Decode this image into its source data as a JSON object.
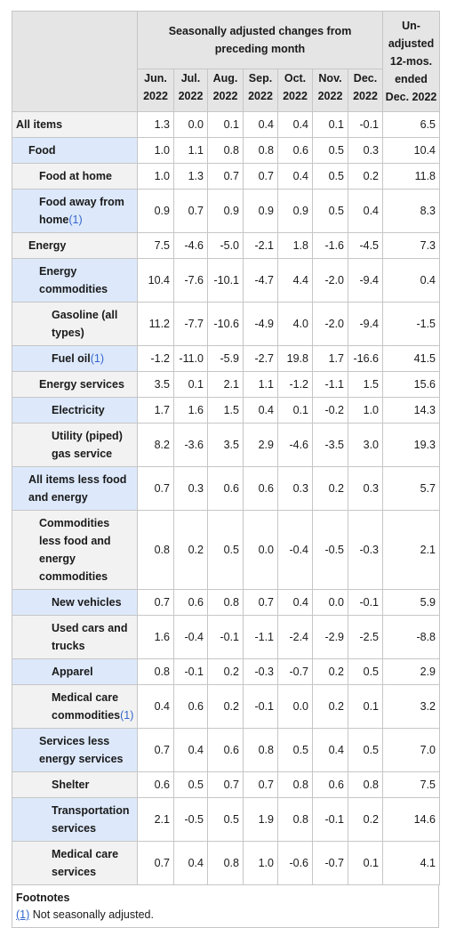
{
  "header": {
    "seasonal": "Seasonally adjusted changes from preceding month",
    "unadjusted": "Un-adjusted 12-mos. ended Dec. 2022",
    "months": [
      {
        "m": "Jun.",
        "y": "2022"
      },
      {
        "m": "Jul.",
        "y": "2022"
      },
      {
        "m": "Aug.",
        "y": "2022"
      },
      {
        "m": "Sep.",
        "y": "2022"
      },
      {
        "m": "Oct.",
        "y": "2022"
      },
      {
        "m": "Nov.",
        "y": "2022"
      },
      {
        "m": "Dec.",
        "y": "2022"
      }
    ]
  },
  "rows": [
    {
      "label": "All items",
      "fn": "",
      "level": 0,
      "vals": [
        "1.3",
        "0.0",
        "0.1",
        "0.4",
        "0.4",
        "0.1",
        "-0.1",
        "6.5"
      ]
    },
    {
      "label": "Food",
      "fn": "",
      "level": 1,
      "vals": [
        "1.0",
        "1.1",
        "0.8",
        "0.8",
        "0.6",
        "0.5",
        "0.3",
        "10.4"
      ]
    },
    {
      "label": "Food at home",
      "fn": "",
      "level": 2,
      "vals": [
        "1.0",
        "1.3",
        "0.7",
        "0.7",
        "0.4",
        "0.5",
        "0.2",
        "11.8"
      ]
    },
    {
      "label": "Food away from home",
      "fn": "(1)",
      "level": 2,
      "vals": [
        "0.9",
        "0.7",
        "0.9",
        "0.9",
        "0.9",
        "0.5",
        "0.4",
        "8.3"
      ]
    },
    {
      "label": "Energy",
      "fn": "",
      "level": 1,
      "vals": [
        "7.5",
        "-4.6",
        "-5.0",
        "-2.1",
        "1.8",
        "-1.6",
        "-4.5",
        "7.3"
      ]
    },
    {
      "label": "Energy commodities",
      "fn": "",
      "level": 2,
      "vals": [
        "10.4",
        "-7.6",
        "-10.1",
        "-4.7",
        "4.4",
        "-2.0",
        "-9.4",
        "0.4"
      ]
    },
    {
      "label": "Gasoline (all types)",
      "fn": "",
      "level": 3,
      "vals": [
        "11.2",
        "-7.7",
        "-10.6",
        "-4.9",
        "4.0",
        "-2.0",
        "-9.4",
        "-1.5"
      ]
    },
    {
      "label": "Fuel oil",
      "fn": "(1)",
      "level": 3,
      "vals": [
        "-1.2",
        "-11.0",
        "-5.9",
        "-2.7",
        "19.8",
        "1.7",
        "-16.6",
        "41.5"
      ]
    },
    {
      "label": "Energy services",
      "fn": "",
      "level": 2,
      "vals": [
        "3.5",
        "0.1",
        "2.1",
        "1.1",
        "-1.2",
        "-1.1",
        "1.5",
        "15.6"
      ]
    },
    {
      "label": "Electricity",
      "fn": "",
      "level": 3,
      "vals": [
        "1.7",
        "1.6",
        "1.5",
        "0.4",
        "0.1",
        "-0.2",
        "1.0",
        "14.3"
      ]
    },
    {
      "label": "Utility (piped) gas service",
      "fn": "",
      "level": 3,
      "vals": [
        "8.2",
        "-3.6",
        "3.5",
        "2.9",
        "-4.6",
        "-3.5",
        "3.0",
        "19.3"
      ]
    },
    {
      "label": "All items less food and energy",
      "fn": "",
      "level": 1,
      "vals": [
        "0.7",
        "0.3",
        "0.6",
        "0.6",
        "0.3",
        "0.2",
        "0.3",
        "5.7"
      ]
    },
    {
      "label": "Commodities less food and energy commodities",
      "fn": "",
      "level": 2,
      "vals": [
        "0.8",
        "0.2",
        "0.5",
        "0.0",
        "-0.4",
        "-0.5",
        "-0.3",
        "2.1"
      ]
    },
    {
      "label": "New vehicles",
      "fn": "",
      "level": 3,
      "vals": [
        "0.7",
        "0.6",
        "0.8",
        "0.7",
        "0.4",
        "0.0",
        "-0.1",
        "5.9"
      ]
    },
    {
      "label": "Used cars and trucks",
      "fn": "",
      "level": 3,
      "vals": [
        "1.6",
        "-0.4",
        "-0.1",
        "-1.1",
        "-2.4",
        "-2.9",
        "-2.5",
        "-8.8"
      ]
    },
    {
      "label": "Apparel",
      "fn": "",
      "level": 3,
      "vals": [
        "0.8",
        "-0.1",
        "0.2",
        "-0.3",
        "-0.7",
        "0.2",
        "0.5",
        "2.9"
      ]
    },
    {
      "label": "Medical care commodities",
      "fn": "(1)",
      "level": 3,
      "vals": [
        "0.4",
        "0.6",
        "0.2",
        "-0.1",
        "0.0",
        "0.2",
        "0.1",
        "3.2"
      ]
    },
    {
      "label": "Services less energy services",
      "fn": "",
      "level": 2,
      "vals": [
        "0.7",
        "0.4",
        "0.6",
        "0.8",
        "0.5",
        "0.4",
        "0.5",
        "7.0"
      ]
    },
    {
      "label": "Shelter",
      "fn": "",
      "level": 3,
      "vals": [
        "0.6",
        "0.5",
        "0.7",
        "0.7",
        "0.8",
        "0.6",
        "0.8",
        "7.5"
      ]
    },
    {
      "label": "Transportation services",
      "fn": "",
      "level": 3,
      "vals": [
        "2.1",
        "-0.5",
        "0.5",
        "1.9",
        "0.8",
        "-0.1",
        "0.2",
        "14.6"
      ]
    },
    {
      "label": "Medical care services",
      "fn": "",
      "level": 3,
      "vals": [
        "0.7",
        "0.4",
        "0.8",
        "1.0",
        "-0.6",
        "-0.7",
        "0.1",
        "4.1"
      ]
    }
  ],
  "footnotes": {
    "heading": "Footnotes",
    "items": [
      {
        "ref": "(1)",
        "text": " Not seasonally adjusted."
      }
    ]
  },
  "colors": {
    "header_bg": "#e5e5e5",
    "row_gray": "#f2f2f2",
    "row_blue": "#dde9fb",
    "link": "#3366cc",
    "border": "#c6c6c6"
  }
}
